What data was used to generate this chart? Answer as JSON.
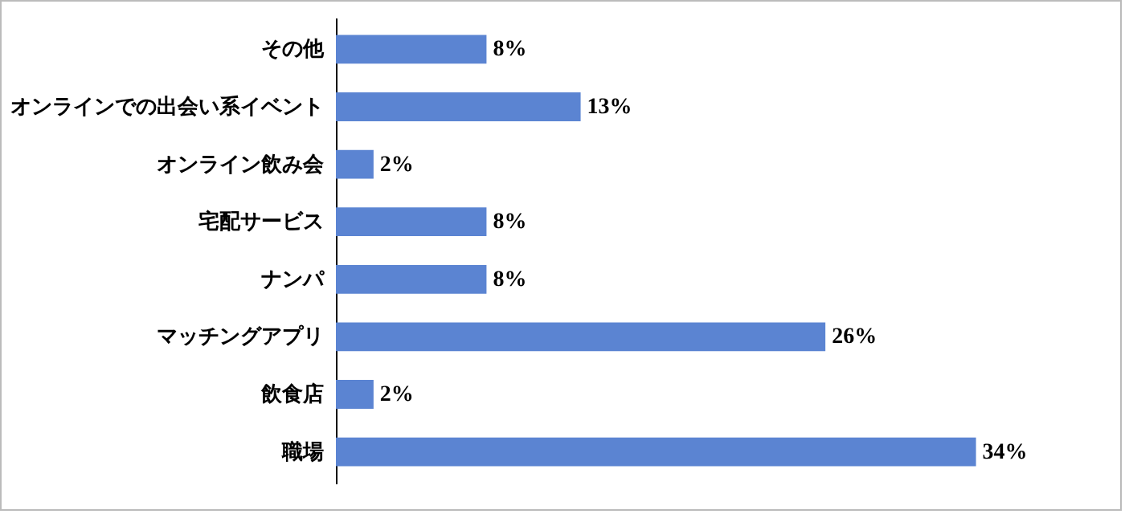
{
  "chart_data": {
    "type": "bar",
    "orientation": "horizontal",
    "categories": [
      "その他",
      "オンラインでの出会い系イベント",
      "オンライン飲み会",
      "宅配サービス",
      "ナンパ",
      "マッチングアプリ",
      "飲食店",
      "職場"
    ],
    "values": [
      8,
      13,
      2,
      8,
      8,
      26,
      2,
      34
    ],
    "value_labels": [
      "8%",
      "13%",
      "2%",
      "8%",
      "8%",
      "26%",
      "2%",
      "34%"
    ],
    "color": "#5b84d2"
  }
}
